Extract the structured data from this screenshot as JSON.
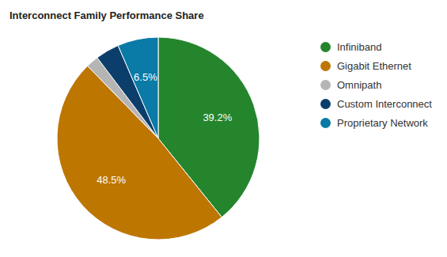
{
  "chart_data": {
    "type": "pie",
    "title": "Interconnect Family Performance Share",
    "categories": [
      "Infiniband",
      "Gigabit Ethernet",
      "Omnipath",
      "Custom Interconnect",
      "Proprietary Network"
    ],
    "values": [
      39.2,
      48.5,
      2.0,
      3.8,
      6.5
    ],
    "value_labels": [
      "39.2%",
      "48.5%",
      null,
      null,
      "6.5%"
    ],
    "colors": [
      "#24852c",
      "#bd7600",
      "#b5b5b5",
      "#0b3e6b",
      "#0a7aa6"
    ],
    "data_labels": true,
    "legend": "right"
  }
}
